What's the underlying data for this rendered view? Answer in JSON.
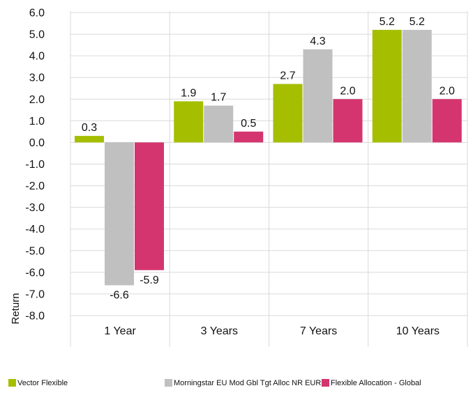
{
  "chart_data": {
    "type": "bar",
    "title": "",
    "xlabel": "",
    "ylabel": "Return",
    "categories": [
      "1 Year",
      "3 Years",
      "7 Years",
      "10 Years"
    ],
    "series": [
      {
        "name": "Vector Flexible",
        "values": [
          0.3,
          1.9,
          2.7,
          5.2
        ],
        "labels": [
          "0.3",
          "1.9",
          "2.7",
          "5.2"
        ],
        "color": "#a5be00"
      },
      {
        "name": "Morningstar EU Mod Gbl Tgt Alloc NR EUR",
        "values": [
          -6.6,
          1.7,
          4.3,
          5.2
        ],
        "labels": [
          "-6.6",
          "1.7",
          "4.3",
          "5.2"
        ],
        "color": "#c0c0c0"
      },
      {
        "name": "Flexible Allocation - Global",
        "values": [
          -5.9,
          0.5,
          2.0,
          2.0
        ],
        "labels": [
          "-5.9",
          "0.5",
          "2.0",
          "2.0"
        ],
        "color": "#d4356f"
      }
    ],
    "ylim": [
      -8.0,
      6.0
    ],
    "yticks": [
      "6.0",
      "5.0",
      "4.0",
      "3.0",
      "2.0",
      "1.0",
      "0.0",
      "-1.0",
      "-2.0",
      "-3.0",
      "-4.0",
      "-5.0",
      "-6.0",
      "-7.0",
      "-8.0"
    ],
    "grid": true,
    "legend_position": "bottom"
  }
}
